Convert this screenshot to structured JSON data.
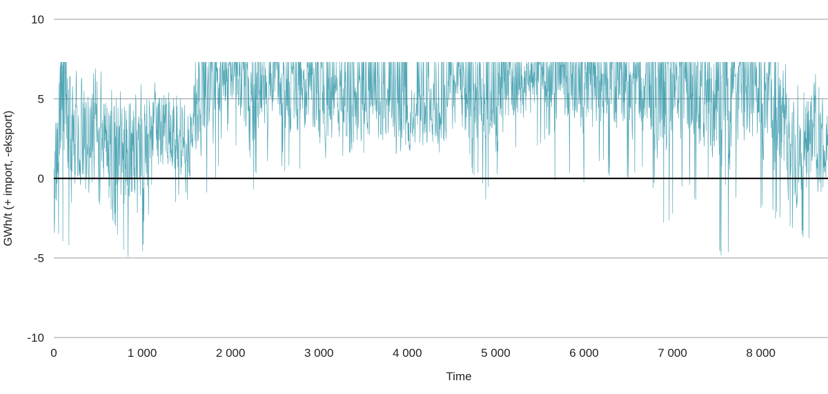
{
  "chart_data": {
    "type": "line",
    "title": "",
    "xlabel": "Time",
    "ylabel": "GWh/t (+ import, -eksport)",
    "xlim": [
      0,
      8760
    ],
    "ylim": [
      -10,
      10
    ],
    "x_ticks": [
      0,
      1000,
      2000,
      3000,
      4000,
      5000,
      6000,
      7000,
      8000
    ],
    "x_tick_labels": [
      "0",
      "1 000",
      "2 000",
      "3 000",
      "4 000",
      "5 000",
      "6 000",
      "7 000",
      "8 000"
    ],
    "y_ticks": [
      10,
      5,
      0,
      -5,
      -10
    ],
    "y_tick_labels": [
      "10",
      "5",
      "0",
      "-5",
      "-10"
    ],
    "grid": true,
    "zero_line": true,
    "series": [
      {
        "color": "#1a8a9e",
        "ceiling": 7.3,
        "x": [
          0,
          100,
          200,
          300,
          400,
          500,
          600,
          700,
          800,
          900,
          1000,
          1100,
          1200,
          1300,
          1400,
          1500,
          1600,
          1700,
          1800,
          1900,
          2000,
          2100,
          2200,
          2300,
          2400,
          2500,
          2600,
          2700,
          2800,
          2900,
          3000,
          3100,
          3200,
          3300,
          3400,
          3500,
          3600,
          3700,
          3800,
          3900,
          4000,
          4100,
          4200,
          4300,
          4400,
          4500,
          4600,
          4700,
          4800,
          4900,
          5000,
          5100,
          5200,
          5300,
          5400,
          5500,
          5600,
          5700,
          5800,
          5900,
          6000,
          6100,
          6200,
          6300,
          6400,
          6500,
          6600,
          6700,
          6800,
          6900,
          7000,
          7100,
          7200,
          7300,
          7400,
          7500,
          7600,
          7700,
          7800,
          7900,
          8000,
          8100,
          8200,
          8300,
          8400,
          8500,
          8600,
          8700
        ],
        "mean": [
          0.5,
          4.5,
          2.5,
          3.0,
          2.5,
          3.5,
          3.0,
          2.5,
          1.5,
          2.0,
          1.0,
          3.0,
          3.5,
          3.0,
          3.0,
          2.5,
          3.5,
          4.5,
          5.0,
          5.5,
          6.0,
          6.0,
          4.0,
          4.5,
          5.5,
          5.5,
          5.5,
          5.0,
          5.5,
          5.0,
          4.5,
          4.0,
          4.5,
          4.5,
          4.0,
          4.0,
          4.5,
          4.0,
          4.0,
          4.0,
          3.5,
          3.5,
          4.0,
          4.0,
          4.5,
          4.5,
          4.5,
          4.5,
          4.0,
          4.5,
          4.5,
          5.0,
          5.5,
          5.5,
          6.0,
          6.5,
          6.0,
          4.5,
          5.0,
          5.5,
          5.0,
          5.5,
          5.0,
          5.5,
          5.0,
          5.5,
          5.0,
          5.0,
          4.5,
          4.5,
          5.0,
          5.0,
          5.0,
          5.0,
          5.0,
          4.0,
          3.5,
          4.5,
          5.0,
          5.0,
          4.5,
          4.0,
          3.5,
          3.0,
          2.5,
          3.0,
          2.5,
          2.5
        ],
        "min": [
          -3.5,
          -5.0,
          -4.5,
          -3.0,
          -4.5,
          -2.0,
          -2.0,
          -3.0,
          -5.8,
          -4.0,
          -5.5,
          -1.0,
          0.0,
          -1.5,
          -1.5,
          -1.5,
          -1.0,
          -1.0,
          -1.5,
          2.0,
          3.0,
          1.0,
          -3.5,
          0.0,
          1.0,
          0.5,
          0.5,
          0.0,
          0.0,
          0.5,
          -0.5,
          1.5,
          1.5,
          0.5,
          2.0,
          1.5,
          2.5,
          2.0,
          1.5,
          1.5,
          1.0,
          1.5,
          1.5,
          1.0,
          1.5,
          1.5,
          1.0,
          0.5,
          -0.5,
          -1.5,
          -0.5,
          0.5,
          1.5,
          1.0,
          1.5,
          2.0,
          2.5,
          -1.5,
          -0.5,
          0.5,
          -0.5,
          -0.5,
          0.5,
          0.0,
          -0.5,
          -0.5,
          0.0,
          0.0,
          -1.5,
          -3.0,
          -2.5,
          -1.0,
          -1.0,
          -1.5,
          -1.0,
          -3.5,
          -6.8,
          -1.5,
          -1.0,
          -1.0,
          -2.0,
          -1.5,
          -3.5,
          -4.0,
          -3.5,
          -4.0,
          -5.0,
          -1.5
        ]
      }
    ]
  }
}
